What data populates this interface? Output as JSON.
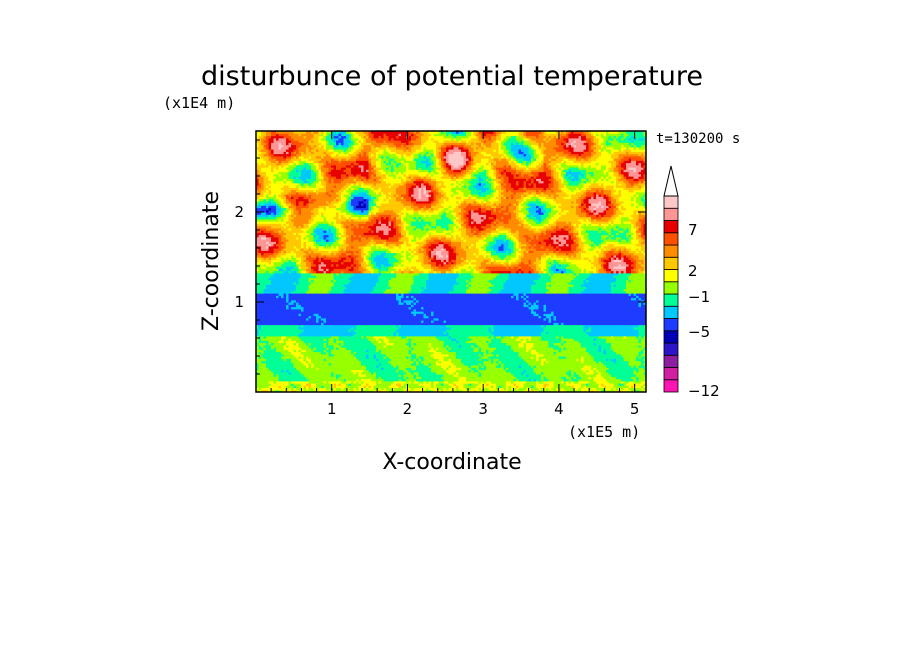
{
  "chart_data": {
    "type": "heatmap",
    "title": "disturbunce of potential temperature",
    "xlabel": "X-coordinate",
    "ylabel": "Z-coordinate",
    "x_unit": "(x1E5 m)",
    "y_unit": "(x1E4 m)",
    "time_label": "t=130200 s",
    "xlim": [
      0,
      5.15
    ],
    "ylim": [
      0,
      2.9
    ],
    "x_ticks": [
      1,
      2,
      3,
      4,
      5
    ],
    "y_ticks": [
      1,
      2
    ],
    "colorbar": {
      "tick_labels": [
        "7",
        "2",
        "−1",
        "−5",
        "−12"
      ],
      "tick_values": [
        7,
        2,
        -1,
        -5,
        -12
      ],
      "colors_bottom_to_top": [
        "#ff14b4",
        "#d21ea0",
        "#8c1ea0",
        "#2d14c8",
        "#0000b4",
        "#1e3cff",
        "#00c8ff",
        "#00ff96",
        "#96ff00",
        "#ffff00",
        "#ffc800",
        "#ff8c00",
        "#ff5000",
        "#e60000",
        "#ff9696",
        "#ffc8c8"
      ],
      "extend": "max"
    },
    "bands": [
      {
        "z_range": [
          0.0,
          0.13
        ],
        "level": "light-green / cyan"
      },
      {
        "z_range": [
          0.13,
          0.62
        ],
        "level": "cyan with green patches"
      },
      {
        "z_range": [
          0.62,
          0.75
        ],
        "level": "blue"
      },
      {
        "z_range": [
          0.75,
          1.1
        ],
        "level": "dark blue (about -5)"
      },
      {
        "z_range": [
          1.1,
          1.32
        ],
        "level": "blue / cyan"
      },
      {
        "z_range": [
          1.32,
          2.9
        ],
        "level": "green to orange, wave pattern"
      }
    ]
  }
}
